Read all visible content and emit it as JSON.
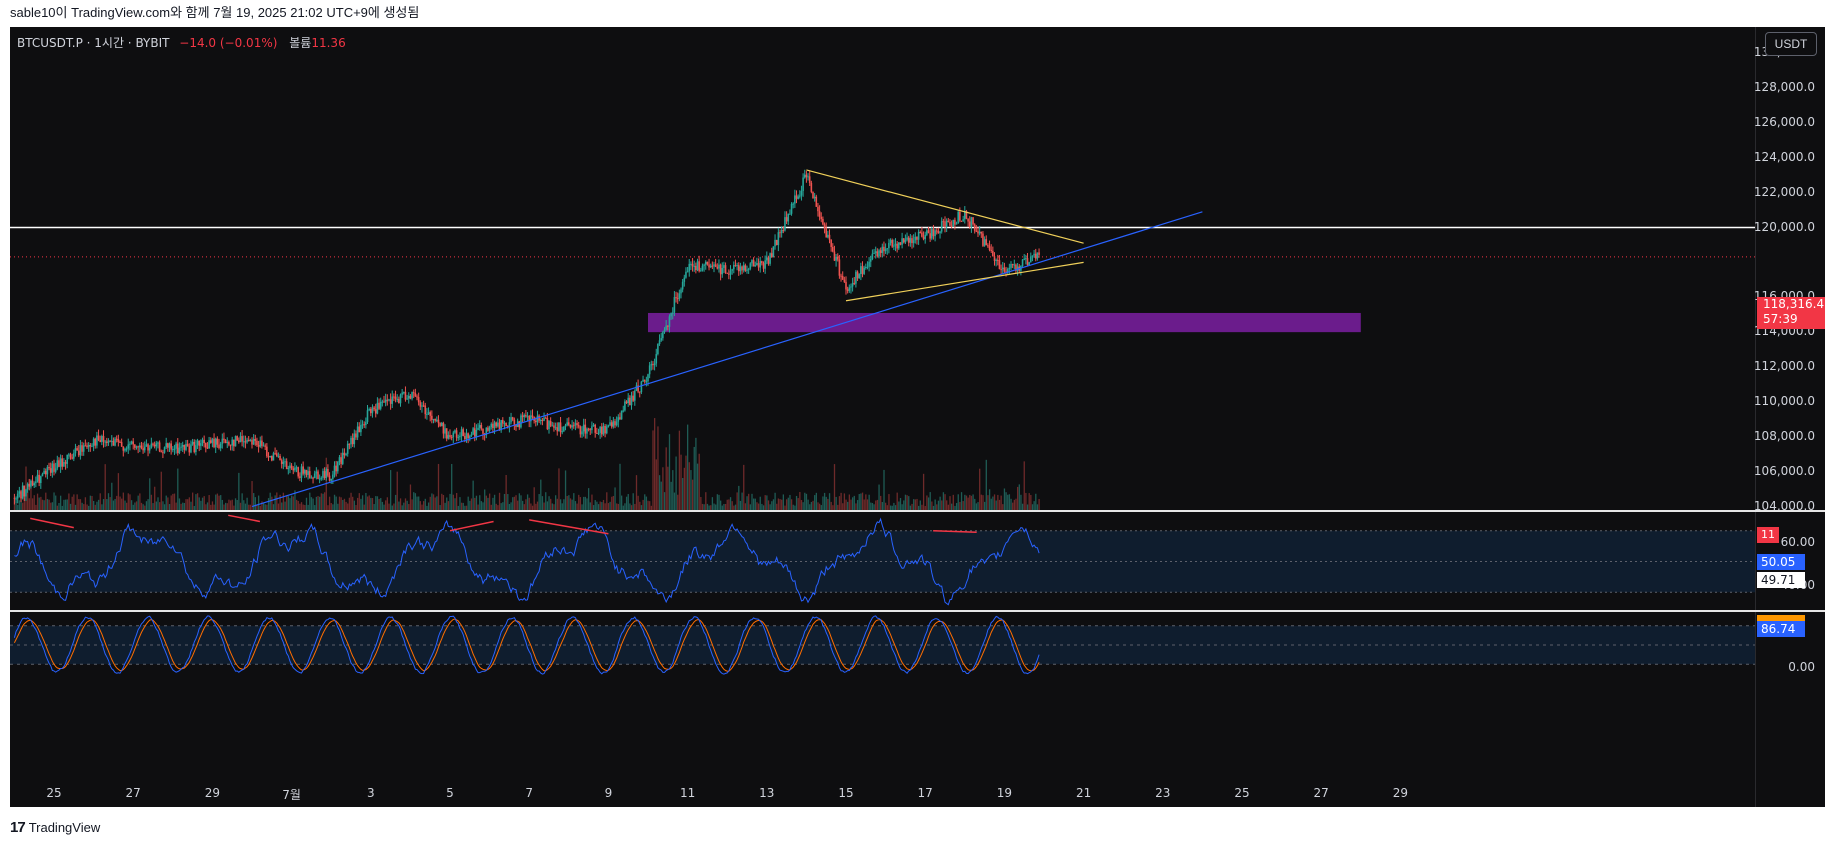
{
  "header": {
    "caption": "sable10이 TradingView.com와 함께 7월 19, 2025 21:02 UTC+9에 생성됨"
  },
  "legend": {
    "symbol": "BTCUSDT.P · 1시간 · BYBIT",
    "change": "−14.0 (−0.01%)",
    "volume_label": "볼륨",
    "volume_value": "11.36"
  },
  "currency_button": "USDT",
  "price_axis": {
    "labels": [
      "130,000.0",
      "128,000.0",
      "126,000.0",
      "124,000.0",
      "122,000.0",
      "120,000.0",
      "116,000.0",
      "114,000.0",
      "112,000.0",
      "110,000.0",
      "108,000.0",
      "106,000.0",
      "104,000.0"
    ]
  },
  "current_price": {
    "price": "118,316.4",
    "countdown": "57:39"
  },
  "volume_tag": "11",
  "rsi": {
    "axis_labels": [
      "60.00",
      "40.00"
    ],
    "value_blue": "50.05",
    "value_white": "49.71"
  },
  "stoch": {
    "axis_labels": [
      "0.00"
    ],
    "value_blue": "86.74"
  },
  "time_axis": {
    "labels": [
      "25",
      "27",
      "29",
      "7월",
      "3",
      "5",
      "7",
      "9",
      "11",
      "13",
      "15",
      "17",
      "19",
      "21",
      "23",
      "25",
      "27",
      "29"
    ]
  },
  "footer": {
    "logo": "TradingView"
  },
  "colors": {
    "background": "#0e0e10",
    "up": "#26a69a",
    "down": "#ef5350",
    "trendline": "#2962ff",
    "triangle": "#f0d05a",
    "zone": "#7b1fa2",
    "rsi_line": "#2962ff",
    "stoch_k": "#2962ff",
    "stoch_d": "#ff6d00",
    "divergence": "#f23645"
  },
  "chart_data": {
    "type": "candlestick",
    "symbol": "BTCUSDT.P",
    "interval": "1시간",
    "exchange": "BYBIT",
    "y_range": [
      103800,
      131500
    ],
    "horizontal_line": 120000,
    "current_price": 118316.4,
    "zone": {
      "from": 114000,
      "to": 115100,
      "start_date": "Jul 10",
      "end_date": "Jul 28"
    },
    "trendline": {
      "points": [
        [
          "Jun 30",
          104000
        ],
        [
          "Jul 24",
          120900
        ]
      ]
    },
    "triangle": {
      "upper": [
        [
          "Jul 14",
          123300
        ],
        [
          "Jul 21",
          119100
        ]
      ],
      "lower": [
        [
          "Jul 15",
          115800
        ],
        [
          "Jul 21",
          118000
        ]
      ]
    },
    "price_path": [
      [
        "Jun 24",
        104500
      ],
      [
        "Jun 25",
        106200
      ],
      [
        "Jun 26",
        107800
      ],
      [
        "Jun 27",
        107400
      ],
      [
        "Jun 28",
        107300
      ],
      [
        "Jun 29",
        107600
      ],
      [
        "Jun 30",
        107900
      ],
      [
        "Jul 1",
        106000
      ],
      [
        "Jul 2",
        105800
      ],
      [
        "Jul 3",
        109500
      ],
      [
        "Jul 4",
        110500
      ],
      [
        "Jul 5",
        108000
      ],
      [
        "Jul 6",
        108500
      ],
      [
        "Jul 7",
        109000
      ],
      [
        "Jul 8",
        108500
      ],
      [
        "Jul 9",
        108400
      ],
      [
        "Jul 10",
        111500
      ],
      [
        "Jul 11",
        117800
      ],
      [
        "Jul 12",
        117600
      ],
      [
        "Jul 13",
        118000
      ],
      [
        "Jul 14",
        123000
      ],
      [
        "Jul 15",
        116500
      ],
      [
        "Jul 16",
        119000
      ],
      [
        "Jul 17",
        119500
      ],
      [
        "Jul 18",
        120800
      ],
      [
        "Jul 19",
        117500
      ],
      [
        "Jul 19 21:00",
        118316
      ]
    ],
    "rsi_range": [
      0,
      100
    ],
    "rsi_levels": [
      70,
      50,
      30
    ],
    "stoch_levels": [
      80,
      50,
      20
    ]
  }
}
